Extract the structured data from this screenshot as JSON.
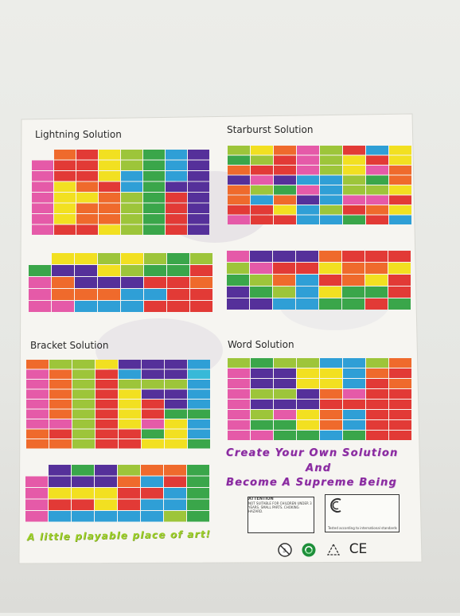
{
  "labels": {
    "lightning": "Lightning Solution",
    "starburst": "Starburst Solution",
    "bracket": "Bracket Solution",
    "word": "Word Solution"
  },
  "slogan": {
    "line1": "Create Your Own Solution",
    "line2": "And",
    "line3": "Become A Supreme Being"
  },
  "tagline": "A little playable place of art!",
  "warning_box": {
    "title": "ATTENTION",
    "text": "NOT SUITABLE FOR CHILDREN UNDER 3 YEARS. SMALL PARTS. CHOKING HAZARD."
  },
  "standards_box": {
    "text": "Tested according to international standards"
  },
  "bottom_icons": [
    "no-children-under-3-icon",
    "recycle-icon",
    "mobius-recycle-icon",
    "ce-mark-icon"
  ],
  "colors": {
    "yellow": "#f2e021",
    "lime": "#9dc53a",
    "green": "#3aa64a",
    "orange": "#ef6a2c",
    "red": "#e23a36",
    "pink": "#e55aa8",
    "purple": "#55309a",
    "blue": "#2f9fd6",
    "cyan": "#37b9d8"
  }
}
